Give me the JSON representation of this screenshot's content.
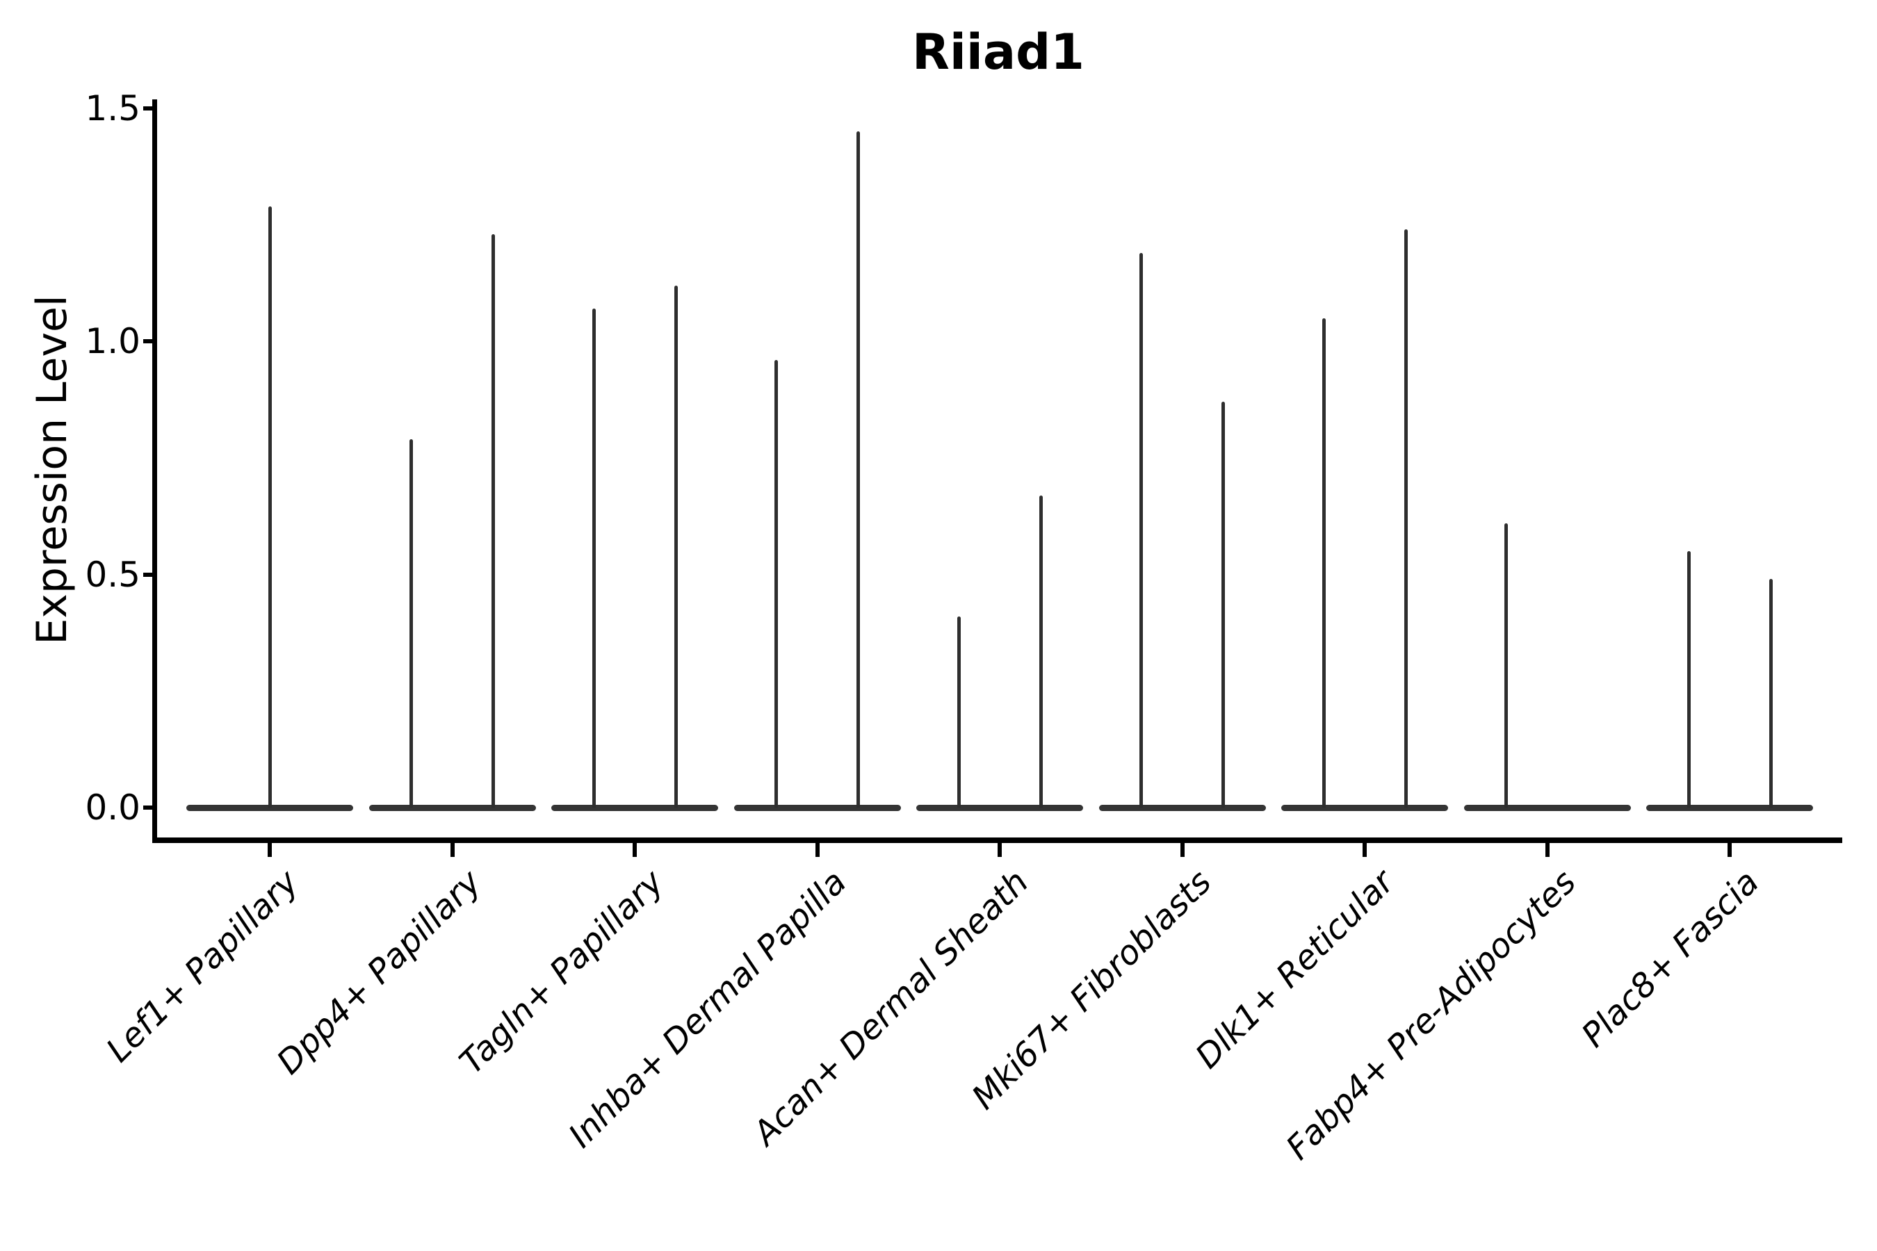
{
  "chart_data": {
    "type": "violin",
    "title": "Riiad1",
    "ylabel": "Expression Level",
    "xlabel": "",
    "ylim": [
      0,
      1.5
    ],
    "grid": false,
    "legend": "none",
    "yticks": [
      {
        "label": "0.0",
        "value": 0.0
      },
      {
        "label": "0.5",
        "value": 0.5
      },
      {
        "label": "1.0",
        "value": 1.0
      },
      {
        "label": "1.5",
        "value": 1.5
      }
    ],
    "categories": [
      {
        "label": "Lef1+ Papillary",
        "violins": [
          {
            "position": "center",
            "max": 1.29
          }
        ]
      },
      {
        "label": "Dpp4+ Papillary",
        "violins": [
          {
            "position": "left",
            "max": 0.79
          },
          {
            "position": "right",
            "max": 1.23
          }
        ]
      },
      {
        "label": "Tagln+ Papillary",
        "violins": [
          {
            "position": "left",
            "max": 1.07
          },
          {
            "position": "right",
            "max": 1.12
          }
        ]
      },
      {
        "label": "Inhba+ Dermal Papilla",
        "violins": [
          {
            "position": "left",
            "max": 0.96
          },
          {
            "position": "right",
            "max": 1.45
          }
        ]
      },
      {
        "label": "Acan+ Dermal Sheath",
        "violins": [
          {
            "position": "left",
            "max": 0.41
          },
          {
            "position": "right",
            "max": 0.67
          }
        ]
      },
      {
        "label": "Mki67+ Fibroblasts",
        "violins": [
          {
            "position": "left",
            "max": 1.19
          },
          {
            "position": "right",
            "max": 0.87
          }
        ]
      },
      {
        "label": "Dlk1+ Reticular",
        "violins": [
          {
            "position": "left",
            "max": 1.05
          },
          {
            "position": "right",
            "max": 1.24
          }
        ]
      },
      {
        "label": "Fabp4+ Pre-Adipocytes",
        "violins": [
          {
            "position": "left",
            "max": 0.61
          }
        ]
      },
      {
        "label": "Plac8+ Fascia",
        "violins": [
          {
            "position": "left",
            "max": 0.55
          },
          {
            "position": "right",
            "max": 0.49
          }
        ]
      }
    ],
    "baseline_value": 0.0,
    "colors": {
      "violin": "#2e2e2e",
      "violin_base": "#343434",
      "axis": "#000000",
      "text": "#000000",
      "background": "#ffffff"
    }
  }
}
